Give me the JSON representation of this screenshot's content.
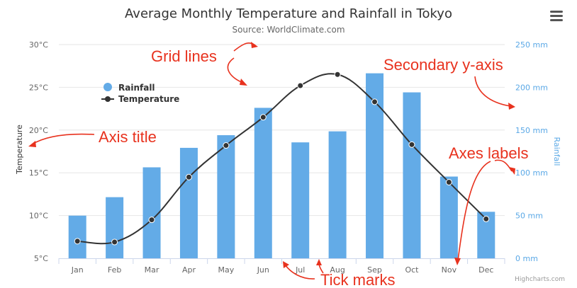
{
  "chart_data": {
    "type": "bar+line",
    "title": "Average Monthly Temperature and Rainfall in Tokyo",
    "subtitle": "Source: WorldClimate.com",
    "categories": [
      "Jan",
      "Feb",
      "Mar",
      "Apr",
      "May",
      "Jun",
      "Jul",
      "Aug",
      "Sep",
      "Oct",
      "Nov",
      "Dec"
    ],
    "series": [
      {
        "name": "Rainfall",
        "type": "column",
        "yAxis": "right",
        "color": "#63abe7",
        "values": [
          49.9,
          71.5,
          106.4,
          129.2,
          144.0,
          176.0,
          135.6,
          148.5,
          216.4,
          194.1,
          95.6,
          54.4
        ]
      },
      {
        "name": "Temperature",
        "type": "spline",
        "yAxis": "left",
        "color": "#333333",
        "values": [
          7.0,
          6.9,
          9.5,
          14.5,
          18.2,
          21.5,
          25.2,
          26.5,
          23.3,
          18.3,
          13.9,
          9.6
        ]
      }
    ],
    "left_axis": {
      "title": "Temperature",
      "range": [
        5,
        30
      ],
      "ticks": [
        "5°C",
        "10°C",
        "15°C",
        "20°C",
        "25°C",
        "30°C"
      ]
    },
    "right_axis": {
      "title": "Rainfall",
      "range": [
        0,
        250
      ],
      "ticks": [
        "0 mm",
        "50 mm",
        "100 mm",
        "150 mm",
        "200 mm",
        "250 mm"
      ]
    },
    "legend": {
      "placement": "top-left",
      "items": [
        "Rainfall",
        "Temperature"
      ]
    },
    "grid": true,
    "credits": "Highcharts.com"
  },
  "annotations": {
    "grid_lines": "Grid lines",
    "secondary_axis": "Secondary y-axis",
    "axis_title": "Axis title",
    "axes_labels": "Axes labels",
    "tick_marks": "Tick marks"
  },
  "menu": {
    "icon": "hamburger-menu-icon"
  }
}
